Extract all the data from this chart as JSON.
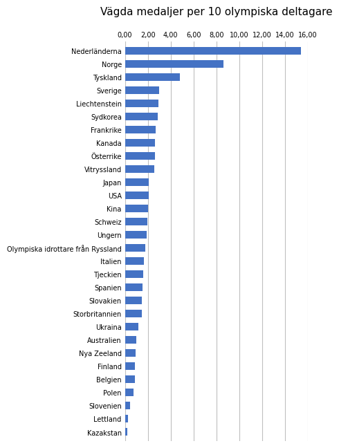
{
  "title": "Vägda medaljer per 10 olympiska deltagare",
  "categories": [
    "Nederländerna",
    "Norge",
    "Tyskland",
    "Sverige",
    "Liechtenstein",
    "Sydkorea",
    "Frankrike",
    "Kanada",
    "Österrike",
    "Vitryssland",
    "Japan",
    "USA",
    "Kina",
    "Schweiz",
    "Ungern",
    "Olympiska idrottare från Ryssland",
    "Italien",
    "Tjeckien",
    "Spanien",
    "Slovakien",
    "Storbritannien",
    "Ukraina",
    "Australien",
    "Nya Zeeland",
    "Finland",
    "Belgien",
    "Polen",
    "Slovenien",
    "Lettland",
    "Kazakstan"
  ],
  "values": [
    15.4,
    8.6,
    4.8,
    3.0,
    2.9,
    2.85,
    2.7,
    2.65,
    2.6,
    2.55,
    2.1,
    2.05,
    2.0,
    1.95,
    1.9,
    1.75,
    1.65,
    1.6,
    1.55,
    1.5,
    1.45,
    1.2,
    1.0,
    0.95,
    0.9,
    0.85,
    0.75,
    0.42,
    0.25,
    0.18
  ],
  "bar_color": "#4472C4",
  "xlim": [
    0,
    16.0
  ],
  "xticks": [
    0.0,
    2.0,
    4.0,
    6.0,
    8.0,
    10.0,
    12.0,
    14.0,
    16.0
  ],
  "xtick_labels": [
    "0,00",
    "2,00",
    "4,00",
    "6,00",
    "8,00",
    "10,00",
    "12,00",
    "14,00",
    "16,00"
  ],
  "background_color": "#ffffff",
  "grid_color": "#bfbfbf",
  "title_fontsize": 11,
  "label_fontsize": 7.0,
  "tick_fontsize": 7.0,
  "bar_height": 0.55
}
